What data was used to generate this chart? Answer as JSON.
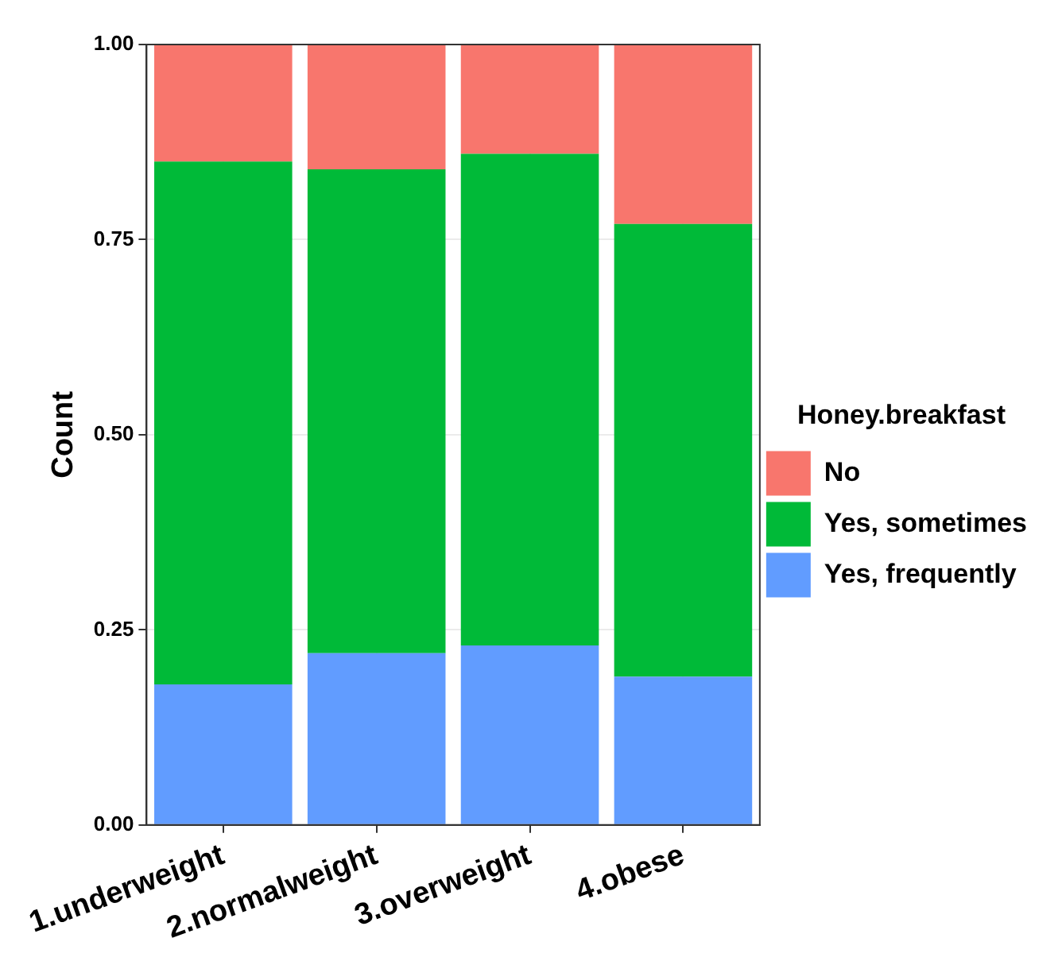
{
  "chart_data": {
    "type": "bar",
    "stacked": true,
    "ylabel": "Count",
    "legend_title": "Honey.breakfast",
    "categories": [
      "1.underweight",
      "2.normalweight",
      "3.overweight",
      "4.obese"
    ],
    "series": [
      {
        "name": "Yes, frequently",
        "color": "#619cff",
        "values": [
          0.18,
          0.22,
          0.23,
          0.19
        ]
      },
      {
        "name": "Yes, sometimes",
        "color": "#00ba38",
        "values": [
          0.67,
          0.62,
          0.63,
          0.58
        ]
      },
      {
        "name": "No",
        "color": "#f8766d",
        "values": [
          0.15,
          0.16,
          0.14,
          0.23
        ]
      }
    ],
    "ylim": [
      0,
      1
    ],
    "yticks": [
      {
        "value": 0,
        "label": "0.00"
      },
      {
        "value": 0.25,
        "label": "0.25"
      },
      {
        "value": 0.5,
        "label": "0.50"
      },
      {
        "value": 0.75,
        "label": "0.75"
      },
      {
        "value": 1,
        "label": "1.00"
      }
    ],
    "grid": true,
    "legend": "right"
  }
}
